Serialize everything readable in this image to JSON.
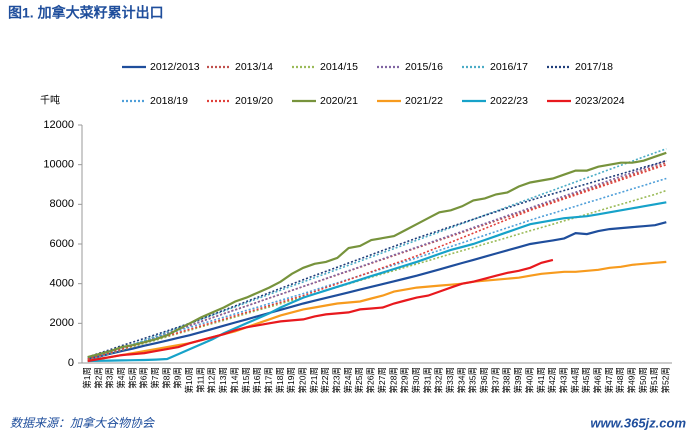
{
  "chart_data": {
    "type": "line",
    "title": "图1. 加拿大菜籽累计出口",
    "y_label": "千吨",
    "source": "数据来源：加拿大谷物协会",
    "watermark": "www.365jz.com",
    "categories": [
      "第1周",
      "第2周",
      "第3周",
      "第4周",
      "第5周",
      "第6周",
      "第7周",
      "第8周",
      "第9周",
      "第10周",
      "第11周",
      "第12周",
      "第13周",
      "第14周",
      "第15周",
      "第16周",
      "第17周",
      "第18周",
      "第19周",
      "第20周",
      "第21周",
      "第22周",
      "第23周",
      "第24周",
      "第25周",
      "第26周",
      "第27周",
      "第28周",
      "第29周",
      "第30周",
      "第31周",
      "第32周",
      "第33周",
      "第34周",
      "第35周",
      "第36周",
      "第37周",
      "第38周",
      "第39周",
      "第40周",
      "第41周",
      "第42周",
      "第43周",
      "第44周",
      "第45周",
      "第46周",
      "第47周",
      "第48周",
      "第49周",
      "第50周",
      "第51周",
      "第52周"
    ],
    "ylim": [
      0,
      12000
    ],
    "yticks": [
      0,
      2000,
      4000,
      6000,
      8000,
      10000,
      12000
    ],
    "grid": false,
    "series": [
      {
        "name": "2012/2013",
        "color": "#1f4e9c",
        "style": "solid",
        "values": [
          200,
          330,
          470,
          600,
          730,
          870,
          1000,
          1130,
          1270,
          1400,
          1560,
          1720,
          1880,
          2040,
          2200,
          2360,
          2520,
          2680,
          2840,
          3000,
          3140,
          3280,
          3420,
          3560,
          3700,
          3840,
          3980,
          4120,
          4260,
          4400,
          4560,
          4720,
          4880,
          5040,
          5200,
          5360,
          5520,
          5680,
          5840,
          6000,
          6090,
          6180,
          6280,
          6550,
          6500,
          6650,
          6750,
          6800,
          6850,
          6900,
          6950,
          7100
        ]
      },
      {
        "name": "2013/14",
        "color": "#c0504d",
        "style": "dotted",
        "values": [
          150,
          345,
          540,
          735,
          930,
          1125,
          1320,
          1515,
          1710,
          1905,
          2100,
          2295,
          2490,
          2685,
          2880,
          3075,
          3270,
          3465,
          3660,
          3855,
          4050,
          4245,
          4440,
          4635,
          4830,
          5025,
          5220,
          5415,
          5610,
          5805,
          6000,
          6195,
          6390,
          6585,
          6780,
          6975,
          7170,
          7365,
          7560,
          7755,
          7950,
          8145,
          8340,
          8535,
          8730,
          8925,
          9120,
          9315,
          9510,
          9705,
          9900,
          10100
        ]
      },
      {
        "name": "2014/15",
        "color": "#9bbb59",
        "style": "dotted",
        "values": [
          150,
          320,
          480,
          650,
          820,
          990,
          1150,
          1320,
          1490,
          1650,
          1820,
          1990,
          2150,
          2320,
          2490,
          2660,
          2820,
          2990,
          3160,
          3320,
          3490,
          3660,
          3820,
          3990,
          4160,
          4330,
          4490,
          4660,
          4830,
          4990,
          5160,
          5330,
          5500,
          5660,
          5830,
          6000,
          6160,
          6330,
          6500,
          6670,
          6830,
          7000,
          7170,
          7330,
          7500,
          7670,
          7840,
          8000,
          8170,
          8340,
          8500,
          8700
        ]
      },
      {
        "name": "2015/16",
        "color": "#8064a2",
        "style": "dotted",
        "values": [
          100,
          300,
          500,
          690,
          890,
          1090,
          1290,
          1490,
          1680,
          1880,
          2080,
          2280,
          2480,
          2670,
          2870,
          3070,
          3270,
          3470,
          3660,
          3860,
          4060,
          4260,
          4460,
          4650,
          4850,
          5050,
          5250,
          5450,
          5640,
          5840,
          6040,
          6240,
          6440,
          6630,
          6830,
          7030,
          7230,
          7430,
          7620,
          7820,
          8020,
          8220,
          8420,
          8610,
          8810,
          9010,
          9210,
          9410,
          9600,
          9800,
          10000,
          10200
        ]
      },
      {
        "name": "2016/17",
        "color": "#4bacc6",
        "style": "dotted",
        "values": [
          100,
          310,
          520,
          730,
          940,
          1150,
          1360,
          1570,
          1780,
          1990,
          2200,
          2410,
          2620,
          2830,
          3040,
          3250,
          3460,
          3670,
          3880,
          4090,
          4300,
          4510,
          4720,
          4930,
          5140,
          5350,
          5560,
          5770,
          5980,
          6190,
          6400,
          6610,
          6820,
          7030,
          7240,
          7450,
          7660,
          7870,
          8080,
          8290,
          8500,
          8710,
          8920,
          9130,
          9340,
          9550,
          9760,
          9970,
          10180,
          10390,
          10600,
          10800
        ]
      },
      {
        "name": "2017/18",
        "color": "#1f3d7a",
        "style": "dotted",
        "values": [
          300,
          490,
          680,
          870,
          1060,
          1240,
          1430,
          1620,
          1810,
          2000,
          2220,
          2440,
          2660,
          2880,
          3100,
          3320,
          3540,
          3760,
          3980,
          4200,
          4410,
          4620,
          4830,
          5040,
          5250,
          5460,
          5670,
          5880,
          6090,
          6300,
          6490,
          6680,
          6870,
          7060,
          7250,
          7440,
          7630,
          7820,
          8010,
          8200,
          8370,
          8530,
          8700,
          8870,
          9030,
          9200,
          9370,
          9530,
          9700,
          9870,
          10030,
          10200
        ]
      },
      {
        "name": "2018/19",
        "color": "#4f9fd9",
        "style": "dotted",
        "values": [
          250,
          420,
          600,
          770,
          940,
          1110,
          1280,
          1460,
          1630,
          1800,
          1970,
          2140,
          2310,
          2480,
          2650,
          2820,
          2990,
          3160,
          3330,
          3500,
          3680,
          3860,
          4040,
          4220,
          4400,
          4580,
          4760,
          4940,
          5120,
          5300,
          5490,
          5680,
          5870,
          6060,
          6250,
          6440,
          6630,
          6820,
          7010,
          7200,
          7380,
          7550,
          7730,
          7900,
          8080,
          8250,
          8430,
          8600,
          8780,
          8950,
          9130,
          9300
        ]
      },
      {
        "name": "2019/20",
        "color": "#e0403a",
        "style": "dotted",
        "values": [
          200,
          370,
          530,
          700,
          870,
          1030,
          1200,
          1370,
          1530,
          1700,
          1870,
          2040,
          2210,
          2380,
          2550,
          2720,
          2890,
          3060,
          3230,
          3400,
          3600,
          3800,
          4000,
          4200,
          4400,
          4600,
          4800,
          5000,
          5200,
          5400,
          5630,
          5860,
          6090,
          6320,
          6550,
          6780,
          7010,
          7240,
          7470,
          7700,
          7890,
          8080,
          8280,
          8470,
          8660,
          8850,
          9040,
          9230,
          9430,
          9620,
          9810,
          10000
        ]
      },
      {
        "name": "2020/21",
        "color": "#77933c",
        "style": "solid",
        "values": [
          300,
          450,
          600,
          800,
          900,
          1050,
          1200,
          1400,
          1700,
          2000,
          2300,
          2550,
          2800,
          3100,
          3300,
          3550,
          3800,
          4100,
          4500,
          4800,
          5000,
          5100,
          5300,
          5800,
          5900,
          6200,
          6300,
          6400,
          6700,
          7000,
          7300,
          7600,
          7700,
          7900,
          8200,
          8300,
          8500,
          8600,
          8900,
          9100,
          9200,
          9300,
          9500,
          9700,
          9700,
          9900,
          10000,
          10100,
          10100,
          10200,
          10400,
          10600
        ]
      },
      {
        "name": "2021/22",
        "color": "#f79b1e",
        "style": "solid",
        "values": [
          100,
          200,
          300,
          400,
          500,
          600,
          700,
          800,
          900,
          1000,
          1150,
          1300,
          1450,
          1600,
          1800,
          2000,
          2200,
          2400,
          2550,
          2700,
          2800,
          2900,
          3000,
          3050,
          3100,
          3250,
          3400,
          3600,
          3700,
          3800,
          3850,
          3900,
          3950,
          4000,
          4100,
          4150,
          4200,
          4250,
          4300,
          4400,
          4500,
          4550,
          4600,
          4600,
          4650,
          4700,
          4800,
          4850,
          4950,
          5000,
          5050,
          5100
        ]
      },
      {
        "name": "2022/23",
        "color": "#17a2c9",
        "style": "solid",
        "values": [
          100,
          110,
          120,
          130,
          140,
          150,
          170,
          200,
          450,
          700,
          950,
          1200,
          1500,
          1750,
          2000,
          2250,
          2500,
          2800,
          3050,
          3300,
          3480,
          3660,
          3840,
          4020,
          4200,
          4380,
          4560,
          4740,
          4920,
          5100,
          5300,
          5500,
          5700,
          5850,
          6000,
          6200,
          6400,
          6600,
          6800,
          7000,
          7100,
          7200,
          7300,
          7350,
          7400,
          7500,
          7600,
          7700,
          7800,
          7900,
          8000,
          8100
        ]
      },
      {
        "name": "2023/2024",
        "color": "#e8191e",
        "style": "solid",
        "values": [
          100,
          200,
          300,
          400,
          450,
          500,
          600,
          700,
          800,
          1000,
          1150,
          1300,
          1450,
          1650,
          1800,
          1900,
          2000,
          2100,
          2150,
          2200,
          2350,
          2450,
          2500,
          2550,
          2700,
          2750,
          2800,
          3000,
          3150,
          3300,
          3400,
          3600,
          3800,
          4000,
          4100,
          4250,
          4400,
          4550,
          4650,
          4800,
          5050,
          5200,
          null,
          null,
          null,
          null,
          null,
          null,
          null,
          null,
          null,
          null
        ]
      }
    ]
  }
}
